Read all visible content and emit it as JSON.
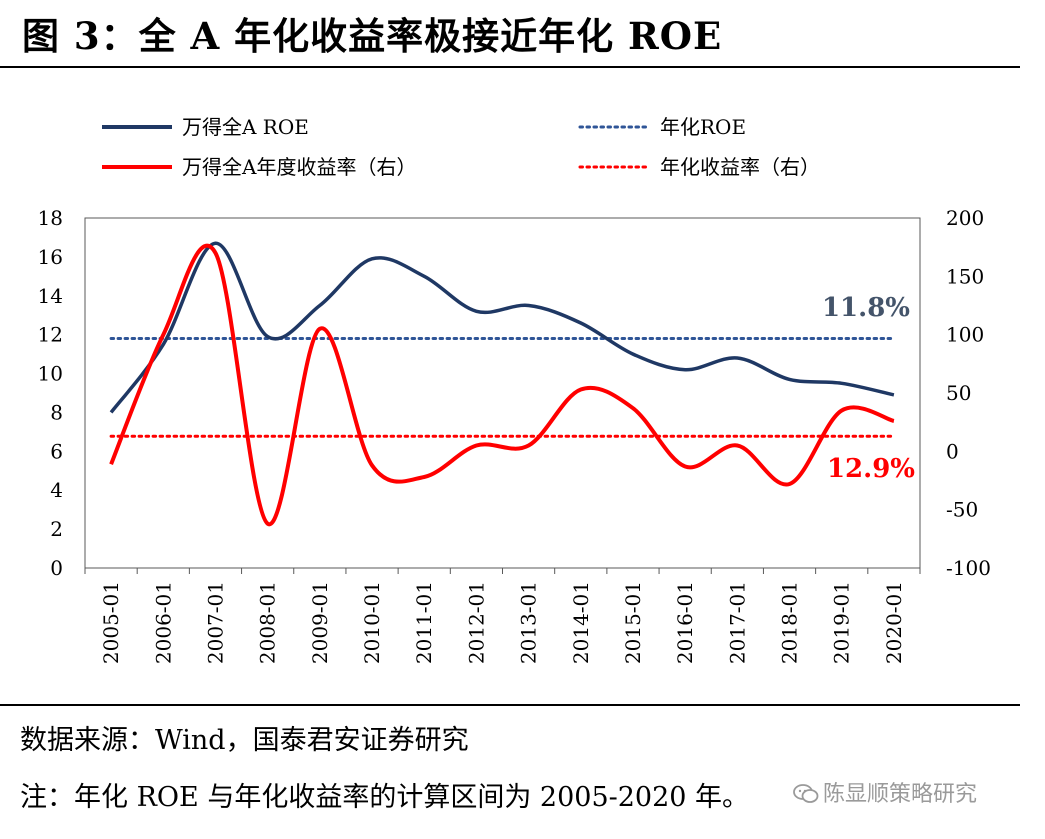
{
  "header": {
    "title": "图 3：全 A 年化收益率极接近年化 ROE"
  },
  "footer": {
    "source": "数据来源：Wind，国泰君安证券研究",
    "note": "注：年化 ROE 与年化收益率的计算区间为 2005-2020 年。",
    "watermark": "陈显顺策略研究"
  },
  "chart_data": {
    "type": "line",
    "x": [
      "2005-01",
      "2006-01",
      "2007-01",
      "2008-01",
      "2009-01",
      "2010-01",
      "2011-01",
      "2012-01",
      "2013-01",
      "2014-01",
      "2015-01",
      "2016-01",
      "2017-01",
      "2018-01",
      "2019-01",
      "2020-01"
    ],
    "left_axis": {
      "ylim": [
        0,
        18
      ],
      "ticks": [
        "18",
        "16",
        "14",
        "12",
        "10",
        "8",
        "6",
        "4",
        "2",
        "0"
      ]
    },
    "right_axis": {
      "ylim": [
        -100,
        200
      ],
      "ticks": [
        "200",
        "150",
        "100",
        "50",
        "0",
        "-50",
        "-100"
      ]
    },
    "series": [
      {
        "name": "万得全A ROE",
        "axis": "left",
        "color": "#1F3864",
        "style": "solid",
        "values": [
          8.0,
          11.5,
          16.7,
          11.9,
          13.5,
          15.9,
          15.0,
          13.2,
          13.5,
          12.6,
          11.0,
          10.2,
          10.8,
          9.7,
          9.5,
          8.9
        ]
      },
      {
        "name": "年化ROE",
        "axis": "left",
        "color": "#2F5597",
        "style": "dotted",
        "values": [
          11.8,
          11.8,
          11.8,
          11.8,
          11.8,
          11.8,
          11.8,
          11.8,
          11.8,
          11.8,
          11.8,
          11.8,
          11.8,
          11.8,
          11.8,
          11.8
        ]
      },
      {
        "name": "万得全A年度收益率（右）",
        "axis": "right",
        "color": "#FF0000",
        "style": "solid",
        "values": [
          -11,
          100,
          170,
          -62,
          105,
          -12,
          -22,
          5,
          5,
          53,
          37,
          -13,
          5,
          -28,
          35,
          26
        ]
      },
      {
        "name": "年化收益率（右）",
        "axis": "right",
        "color": "#FF0000",
        "style": "dotted",
        "values": [
          12.9,
          12.9,
          12.9,
          12.9,
          12.9,
          12.9,
          12.9,
          12.9,
          12.9,
          12.9,
          12.9,
          12.9,
          12.9,
          12.9,
          12.9,
          12.9
        ]
      }
    ],
    "annotations": [
      {
        "text": "11.8%",
        "color": "#44546A"
      },
      {
        "text": "12.9%",
        "color": "#FF0000"
      }
    ],
    "legend_position": "top"
  }
}
